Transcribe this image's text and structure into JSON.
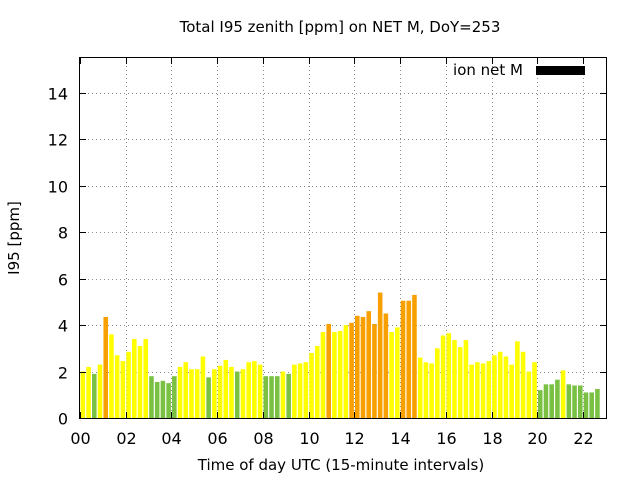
{
  "chart_data": {
    "type": "bar",
    "title": "Total I95 zenith [ppm] on NET M, DoY=253",
    "xlabel": "Time of day UTC (15-minute intervals)",
    "ylabel": "I95 [ppm]",
    "xlim": [
      0,
      23
    ],
    "ylim": [
      0,
      15.5
    ],
    "x_ticks": [
      "00",
      "02",
      "04",
      "06",
      "08",
      "10",
      "12",
      "14",
      "16",
      "18",
      "20",
      "22"
    ],
    "y_ticks": [
      0,
      2,
      4,
      6,
      8,
      10,
      12,
      14
    ],
    "grid": true,
    "legend": {
      "label": "ion net M",
      "placement": "top-right",
      "color": "#000000"
    },
    "level_colors": {
      "low": "#7ac143",
      "medium": "#ffff00",
      "high": "#f7a000"
    },
    "bar_width_hours": 0.2,
    "series": [
      {
        "x": [
          0.125,
          0.375,
          0.625,
          0.875,
          1.125,
          1.375,
          1.625,
          1.875,
          2.125,
          2.375,
          2.625,
          2.875,
          3.125,
          3.375,
          3.625,
          3.875,
          4.125,
          4.375,
          4.625,
          4.875,
          5.125,
          5.375,
          5.625,
          5.875,
          6.125,
          6.375,
          6.625,
          6.875,
          7.125,
          7.375,
          7.625,
          7.875,
          8.125,
          8.375,
          8.625,
          8.875,
          9.125,
          9.375,
          9.625,
          9.875,
          10.125,
          10.375,
          10.625,
          10.875,
          11.125,
          11.375,
          11.625,
          11.875,
          12.125,
          12.375,
          12.625,
          12.875,
          13.125,
          13.375,
          13.625,
          13.875,
          14.125,
          14.375,
          14.625,
          14.875,
          15.125,
          15.375,
          15.625,
          15.875,
          16.125,
          16.375,
          16.625,
          16.875,
          17.125,
          17.375,
          17.625,
          17.875,
          18.125,
          18.375,
          18.625,
          18.875,
          19.125,
          19.375,
          19.625,
          19.875,
          20.125,
          20.375,
          20.625,
          20.875,
          21.125,
          21.375,
          21.625,
          21.875,
          22.125,
          22.375,
          22.625
        ],
        "values": [
          2.0,
          2.2,
          1.9,
          2.3,
          4.35,
          3.6,
          2.7,
          2.45,
          2.85,
          3.4,
          3.1,
          3.4,
          1.8,
          1.55,
          1.6,
          1.5,
          1.8,
          2.2,
          2.4,
          2.1,
          2.1,
          2.65,
          1.75,
          2.1,
          2.25,
          2.5,
          2.2,
          2.0,
          2.1,
          2.4,
          2.45,
          2.3,
          1.8,
          1.8,
          1.8,
          2.0,
          1.9,
          2.3,
          2.35,
          2.4,
          2.8,
          3.1,
          3.7,
          4.05,
          3.7,
          3.75,
          4.0,
          4.1,
          4.4,
          4.35,
          4.6,
          4.05,
          5.4,
          4.5,
          3.7,
          3.9,
          5.05,
          5.05,
          5.3,
          2.6,
          2.4,
          2.35,
          3.0,
          3.55,
          3.65,
          3.35,
          3.05,
          3.35,
          2.3,
          2.4,
          2.35,
          2.45,
          2.7,
          2.85,
          2.65,
          2.3,
          3.3,
          2.85,
          2.0,
          2.4,
          1.2,
          1.45,
          1.45,
          1.65,
          2.05,
          1.45,
          1.4,
          1.4,
          1.1,
          1.1,
          1.25
        ],
        "levels": [
          "medium",
          "medium",
          "low",
          "medium",
          "high",
          "medium",
          "medium",
          "medium",
          "medium",
          "medium",
          "medium",
          "medium",
          "low",
          "low",
          "low",
          "low",
          "low",
          "medium",
          "medium",
          "medium",
          "medium",
          "medium",
          "low",
          "medium",
          "medium",
          "medium",
          "medium",
          "low",
          "medium",
          "medium",
          "medium",
          "medium",
          "low",
          "low",
          "low",
          "medium",
          "low",
          "medium",
          "medium",
          "medium",
          "medium",
          "medium",
          "medium",
          "high",
          "medium",
          "medium",
          "medium",
          "high",
          "high",
          "high",
          "high",
          "high",
          "high",
          "high",
          "medium",
          "medium",
          "high",
          "high",
          "high",
          "medium",
          "medium",
          "medium",
          "medium",
          "medium",
          "medium",
          "medium",
          "medium",
          "medium",
          "medium",
          "medium",
          "medium",
          "medium",
          "medium",
          "medium",
          "medium",
          "medium",
          "medium",
          "medium",
          "medium",
          "medium",
          "low",
          "low",
          "low",
          "low",
          "medium",
          "low",
          "low",
          "low",
          "low",
          "low",
          "low"
        ]
      }
    ]
  }
}
